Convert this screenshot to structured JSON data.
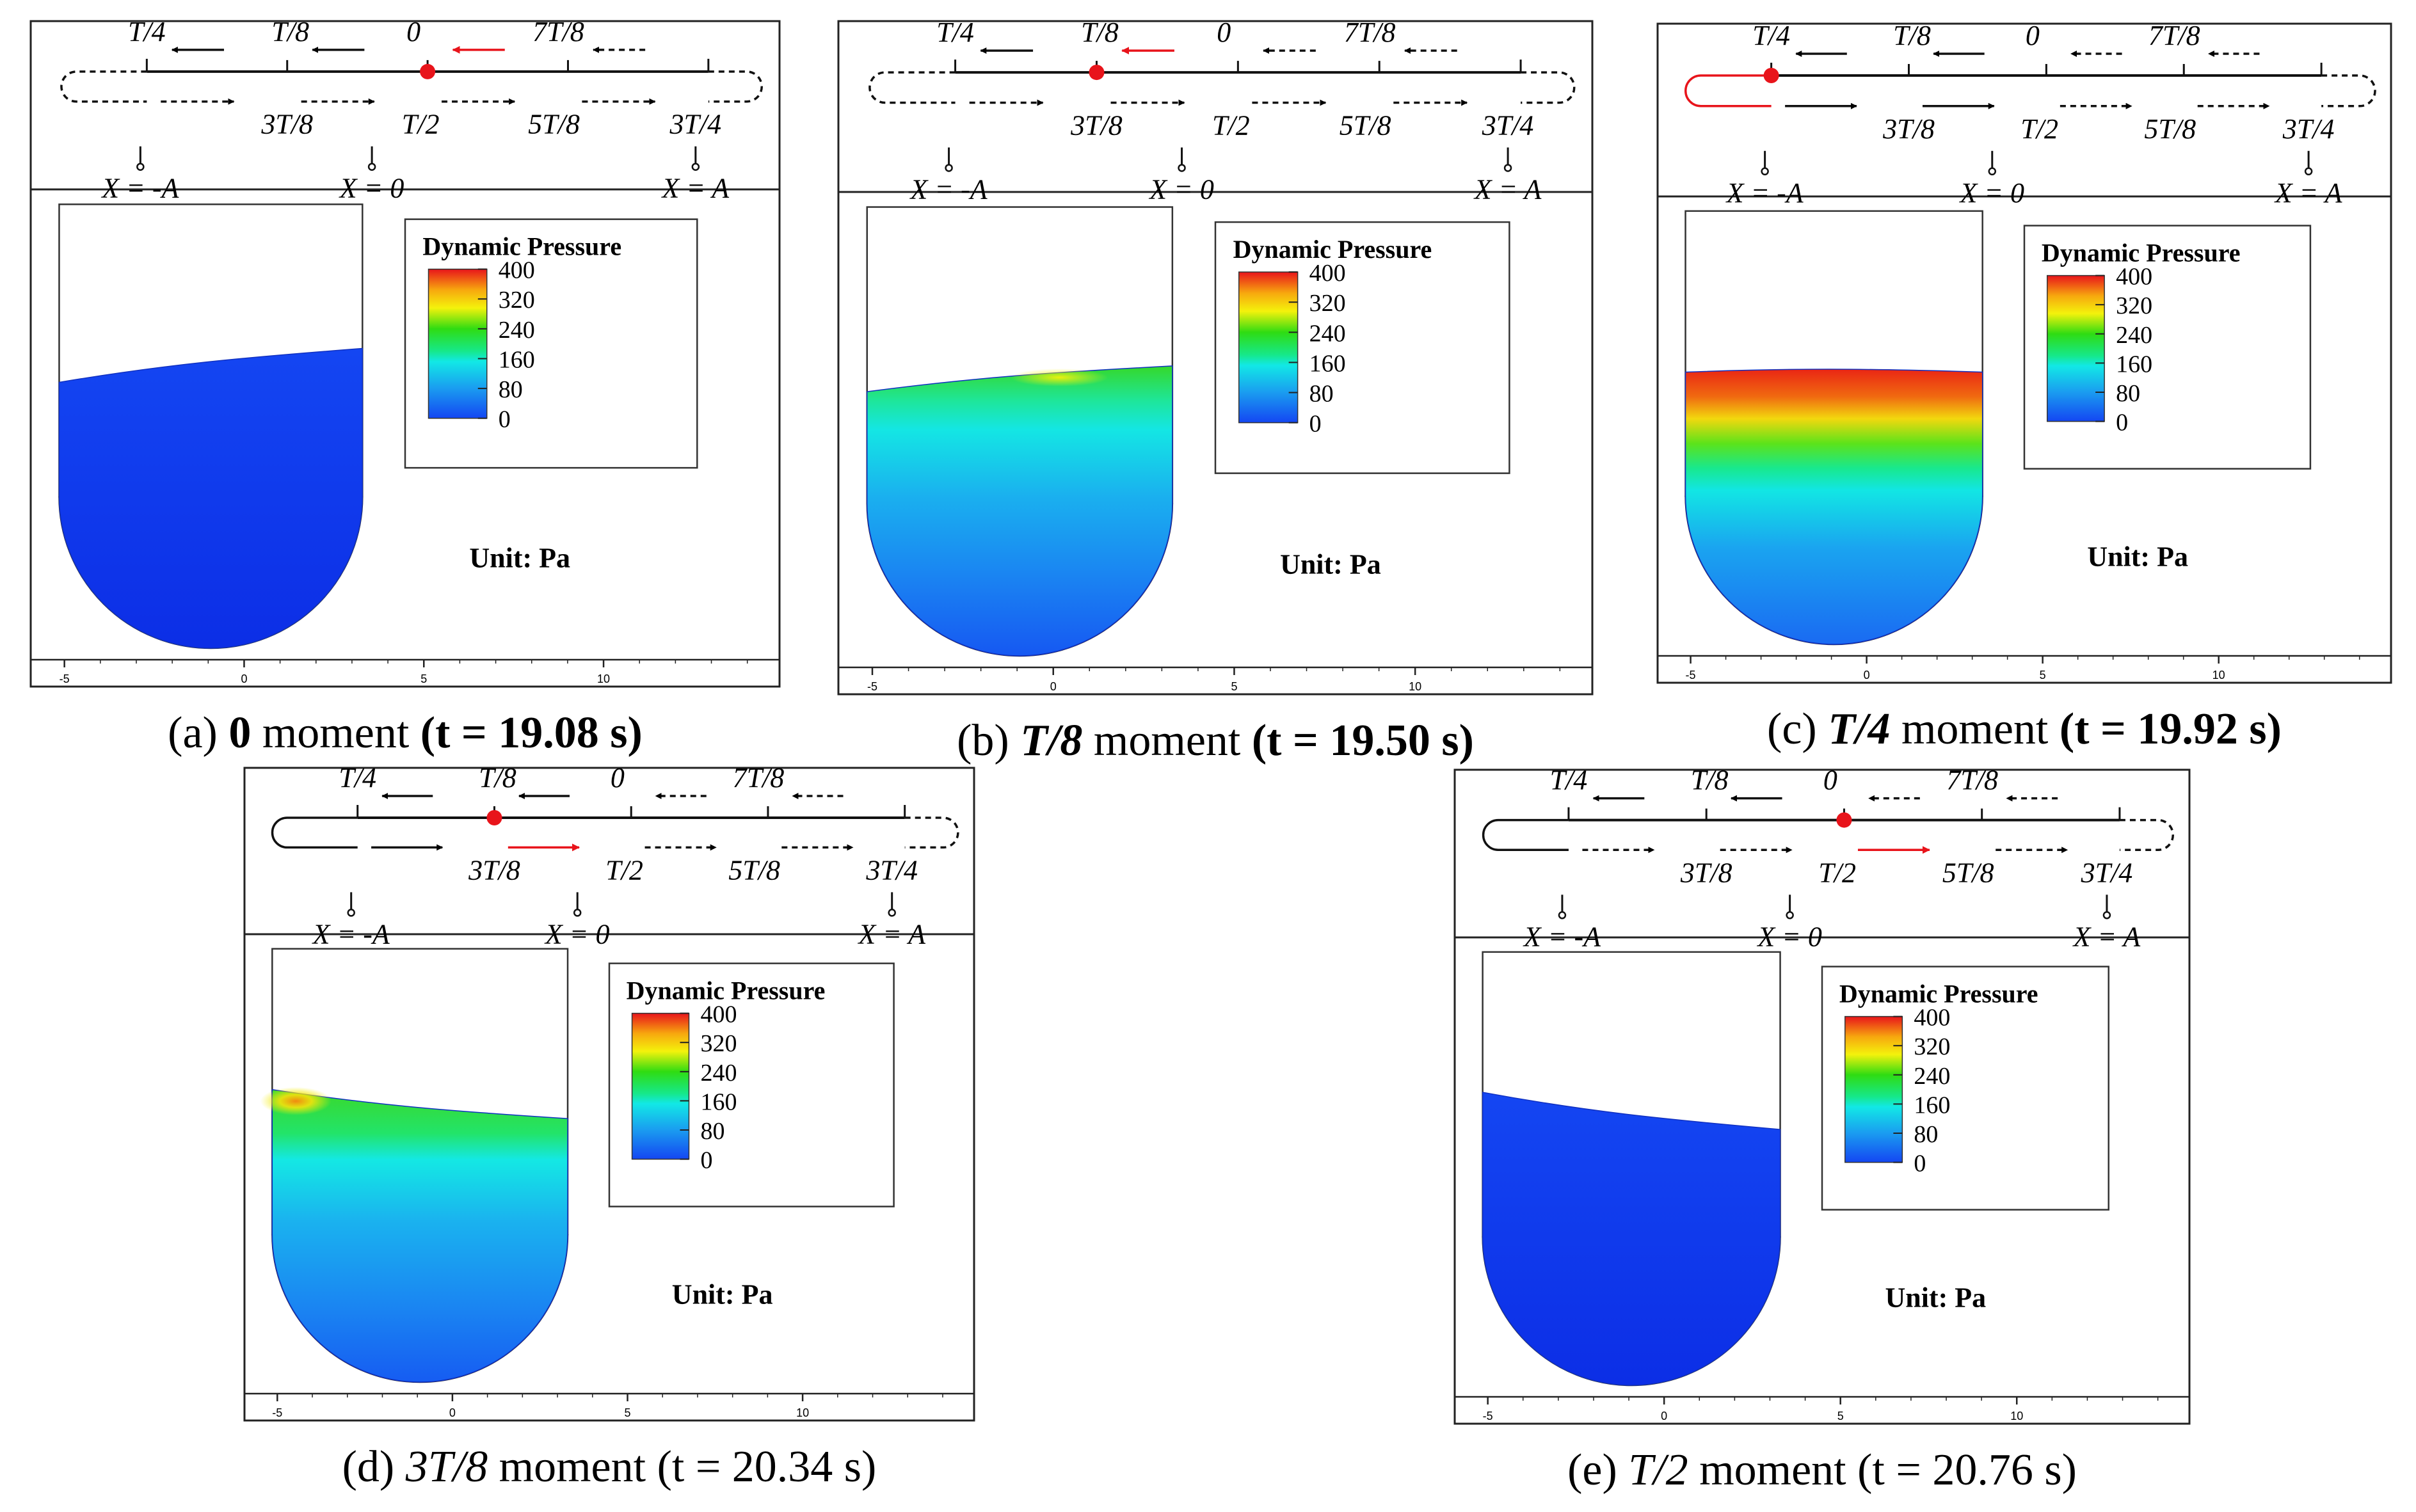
{
  "figure": {
    "legend_title": "Dynamic Pressure",
    "legend_ticks": [
      "400",
      "320",
      "240",
      "160",
      "80",
      "0"
    ],
    "unit_label": "Unit: Pa",
    "axis_ticks": [
      "-5",
      "0",
      "5",
      "10"
    ],
    "colorscale": [
      "#e8141b",
      "#f7a80e",
      "#f4f20c",
      "#2fdc12",
      "#16e88a",
      "#12e8e6",
      "#1a9cf0",
      "#1446f2"
    ],
    "highlight_color": "#e8141b",
    "cycle_labels": {
      "top": [
        "T/4",
        "T/8",
        "0",
        "7T/8"
      ],
      "bottom": [
        "3T/8",
        "T/2",
        "5T/8",
        "3T/4"
      ],
      "positions": [
        "X = -A",
        "X = 0",
        "X = A"
      ]
    }
  },
  "panels": [
    {
      "id": "a",
      "letter": "(a)",
      "moment": "0",
      "word": "moment",
      "time": "(t = 19.08 s)",
      "bold": true,
      "pressure_level": 0.0,
      "hot_spot": "none"
    },
    {
      "id": "b",
      "letter": "(b)",
      "moment": "T/8",
      "word": "moment",
      "time": "(t = 19.50 s)",
      "bold": true,
      "pressure_level": 0.5,
      "hot_spot": "right"
    },
    {
      "id": "c",
      "letter": "(c)",
      "moment": "T/4",
      "word": "moment",
      "time": "(t = 19.92 s)",
      "bold": true,
      "pressure_level": 1.0,
      "hot_spot": "full"
    },
    {
      "id": "d",
      "letter": "(d)",
      "moment": "3T/8",
      "word": "moment",
      "time": "(t = 20.34 s)",
      "bold": false,
      "pressure_level": 0.5,
      "hot_spot": "left"
    },
    {
      "id": "e",
      "letter": "(e)",
      "moment": "T/2",
      "word": "moment",
      "time": "(t = 20.76 s)",
      "bold": false,
      "pressure_level": 0.0,
      "hot_spot": "none"
    }
  ]
}
